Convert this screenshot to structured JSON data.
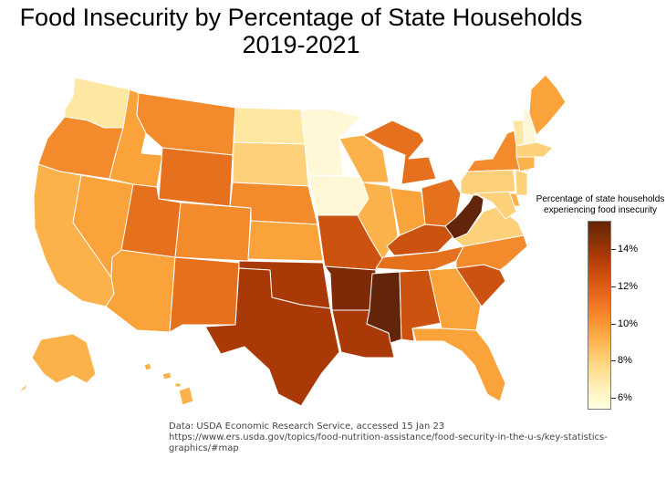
{
  "title": {
    "line1": "Food Insecurity by Percentage of State Households",
    "line2": "2019-2021"
  },
  "colorbar": {
    "label_line1": "Percentage of state households",
    "label_line2": "experiencing food insecurity",
    "ticks": [
      "6%",
      "8%",
      "10%",
      "12%",
      "14%"
    ]
  },
  "source": {
    "line1": "Data: USDA Economic Research Service, accessed 15 Jan 23",
    "line2": "https://www.ers.usda.gov/topics/food-nutrition-assistance/food-security-in-the-u-s/key-statistics-graphics/#map"
  },
  "colors": {
    "c6": "#fff7d6",
    "c7": "#fee7a0",
    "c8": "#fdd07a",
    "c9": "#fcb24a",
    "c10": "#f9a33a",
    "c11": "#f38a2b",
    "c12": "#e5701d",
    "c13": "#cc5210",
    "c14": "#a93a08",
    "c15": "#7e2a06",
    "c16": "#62250a"
  },
  "states": {
    "WA": "c7",
    "OR": "c11",
    "CA": "c9",
    "NV": "c10",
    "ID": "c10",
    "MT": "c11",
    "WY": "c12",
    "UT": "c12",
    "AZ": "c10",
    "NM": "c12",
    "CO": "c11",
    "ND": "c7",
    "SD": "c8",
    "NE": "c11",
    "KS": "c10",
    "OK": "c14",
    "TX": "c14",
    "MN": "c6",
    "IA": "c6",
    "MO": "c13",
    "AR": "c15",
    "LA": "c14",
    "WI": "c9",
    "IL": "c9",
    "MI": "c12",
    "IN": "c10",
    "OH": "c12",
    "KY": "c13",
    "TN": "c12",
    "MS": "c16",
    "AL": "c13",
    "GA": "c10",
    "FL": "c10",
    "SC": "c13",
    "NC": "c11",
    "VA": "c8",
    "WV": "c16",
    "PA": "c8",
    "NY": "c11",
    "VT": "c7",
    "NH": "c6",
    "ME": "c10",
    "MA": "c8",
    "CT": "c9",
    "NJ": "c8",
    "DE": "c9",
    "MD": "c8",
    "AK": "c9",
    "HI": "c9"
  }
}
